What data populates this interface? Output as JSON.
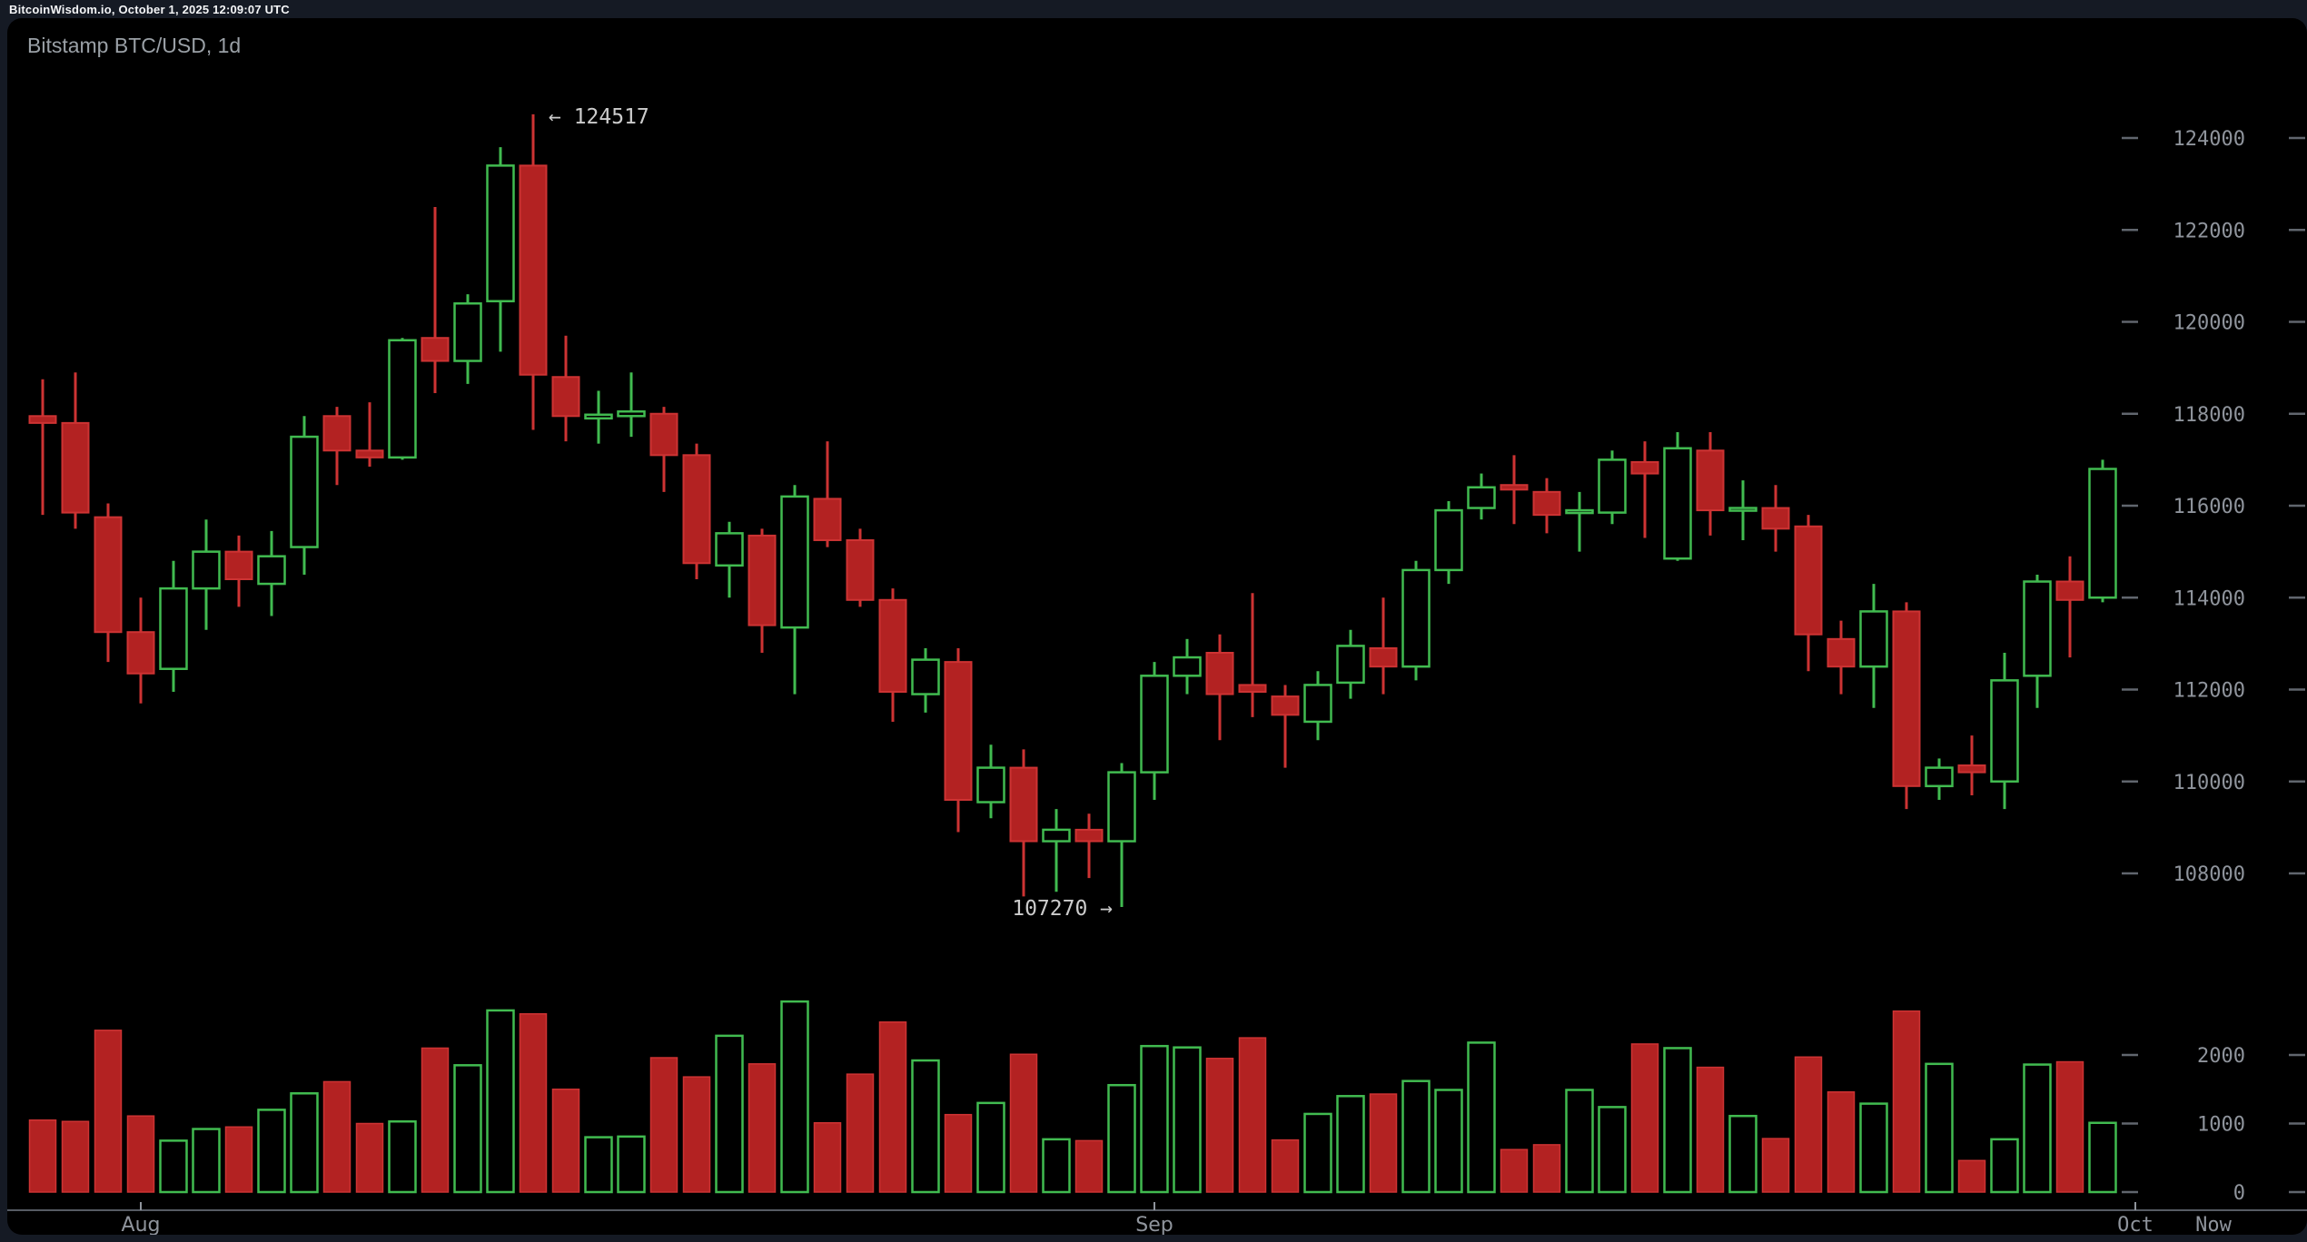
{
  "status_bar": {
    "text": "BitcoinWisdom.io, October 1, 2025 12:09:07 UTC"
  },
  "header": {
    "title": "Bitstamp BTC/USD, 1d"
  },
  "colors": {
    "background": "#151a24",
    "panel": "#000000",
    "up": "#41bb50",
    "down": "#b32222",
    "down_stroke": "#cd3333",
    "axis_text": "#8f949c",
    "axis_line": "#565b63",
    "tick_dash": "#61666e",
    "title_text": "#9aa0a6",
    "annotation_text": "#cccccc",
    "status_text": "#f4f5f7"
  },
  "chart_data": {
    "type": "candlestick",
    "title": "Bitstamp BTC/USD, 1d",
    "legend_position": "none",
    "grid": false,
    "ylim": [
      106800,
      124800
    ],
    "volume_ylim": [
      0,
      3000
    ],
    "price_axis_ticks": [
      124000,
      122000,
      120000,
      118000,
      116000,
      114000,
      112000,
      110000,
      108000
    ],
    "volume_axis_ticks": [
      2000,
      1000,
      0
    ],
    "x_axis": {
      "month_ticks": [
        {
          "label": "Aug",
          "candle_index": 3,
          "mono": false
        },
        {
          "label": "Sep",
          "candle_index": 34,
          "mono": false
        },
        {
          "label": "Oct",
          "candle_index": 64,
          "mono": true
        }
      ],
      "now_label": "Now"
    },
    "annotations": {
      "high": {
        "candle_index": 15,
        "value": 124517,
        "text": "← 124517"
      },
      "low": {
        "candle_index": 33,
        "value": 107270,
        "text": "107270 →"
      }
    },
    "columns": [
      "open",
      "high",
      "low",
      "close",
      "volume"
    ],
    "candles": [
      [
        117950,
        118750,
        115800,
        117800,
        1050
      ],
      [
        117800,
        118900,
        115500,
        115850,
        1030
      ],
      [
        115750,
        116050,
        112600,
        113250,
        2360
      ],
      [
        113250,
        114000,
        111700,
        112350,
        1110
      ],
      [
        112450,
        114800,
        111950,
        114200,
        750
      ],
      [
        114200,
        115700,
        113300,
        115000,
        920
      ],
      [
        115000,
        115350,
        113800,
        114400,
        950
      ],
      [
        114300,
        115450,
        113600,
        114900,
        1200
      ],
      [
        115100,
        117950,
        114500,
        117500,
        1440
      ],
      [
        117950,
        118150,
        116450,
        117200,
        1610
      ],
      [
        117200,
        118250,
        116850,
        117050,
        1000
      ],
      [
        117050,
        119650,
        117000,
        119600,
        1030
      ],
      [
        119650,
        122500,
        118450,
        119150,
        2100
      ],
      [
        119150,
        120600,
        118650,
        120400,
        1850
      ],
      [
        120450,
        123800,
        119350,
        123400,
        2650
      ],
      [
        123400,
        124517,
        117650,
        118850,
        2600
      ],
      [
        118800,
        119700,
        117400,
        117950,
        1500
      ],
      [
        117900,
        118500,
        117350,
        117980,
        800
      ],
      [
        117950,
        118900,
        117500,
        118050,
        810
      ],
      [
        118000,
        118150,
        116300,
        117100,
        1960
      ],
      [
        117100,
        117350,
        114400,
        114750,
        1680
      ],
      [
        114700,
        115650,
        114000,
        115400,
        2280
      ],
      [
        115350,
        115500,
        112800,
        113400,
        1870
      ],
      [
        113350,
        116450,
        111900,
        116200,
        2780
      ],
      [
        116150,
        117400,
        115100,
        115250,
        1010
      ],
      [
        115250,
        115500,
        113800,
        113950,
        1720
      ],
      [
        113950,
        114200,
        111300,
        111950,
        2480
      ],
      [
        111900,
        112900,
        111500,
        112650,
        1920
      ],
      [
        112600,
        112900,
        108900,
        109600,
        1130
      ],
      [
        109550,
        110800,
        109200,
        110300,
        1300
      ],
      [
        110300,
        110700,
        107500,
        108700,
        2010
      ],
      [
        108700,
        109400,
        107600,
        108950,
        770
      ],
      [
        108950,
        109300,
        107900,
        108700,
        750
      ],
      [
        108700,
        110400,
        107270,
        110200,
        1560
      ],
      [
        110200,
        112600,
        109600,
        112300,
        2130
      ],
      [
        112300,
        113100,
        111900,
        112700,
        2110
      ],
      [
        112800,
        113200,
        110900,
        111900,
        1950
      ],
      [
        112100,
        114100,
        111400,
        111950,
        2250
      ],
      [
        111850,
        112100,
        110300,
        111450,
        760
      ],
      [
        111300,
        112400,
        110900,
        112100,
        1140
      ],
      [
        112150,
        113300,
        111800,
        112950,
        1400
      ],
      [
        112900,
        114000,
        111900,
        112500,
        1430
      ],
      [
        112500,
        114800,
        112200,
        114600,
        1620
      ],
      [
        114600,
        116100,
        114300,
        115900,
        1490
      ],
      [
        115950,
        116700,
        115700,
        116400,
        2180
      ],
      [
        116450,
        117100,
        115600,
        116350,
        620
      ],
      [
        116300,
        116600,
        115400,
        115800,
        690
      ],
      [
        115850,
        116300,
        115000,
        115900,
        1490
      ],
      [
        115850,
        117200,
        115600,
        117000,
        1240
      ],
      [
        116950,
        117400,
        115300,
        116700,
        2160
      ],
      [
        114850,
        117600,
        114800,
        117250,
        2100
      ],
      [
        117200,
        117600,
        115350,
        115900,
        1820
      ],
      [
        115900,
        116550,
        115250,
        115950,
        1110
      ],
      [
        115950,
        116450,
        115000,
        115500,
        780
      ],
      [
        115550,
        115800,
        112400,
        113200,
        1970
      ],
      [
        113100,
        113500,
        111900,
        112500,
        1460
      ],
      [
        112500,
        114300,
        111600,
        113700,
        1290
      ],
      [
        113700,
        113900,
        109400,
        109900,
        2640
      ],
      [
        109900,
        110500,
        109600,
        110300,
        1870
      ],
      [
        110350,
        111000,
        109700,
        110200,
        460
      ],
      [
        110000,
        112800,
        109400,
        112200,
        770
      ],
      [
        112300,
        114500,
        111600,
        114350,
        1860
      ],
      [
        114350,
        114900,
        112700,
        113950,
        1900
      ],
      [
        114000,
        117000,
        113900,
        116800,
        1010
      ]
    ]
  }
}
